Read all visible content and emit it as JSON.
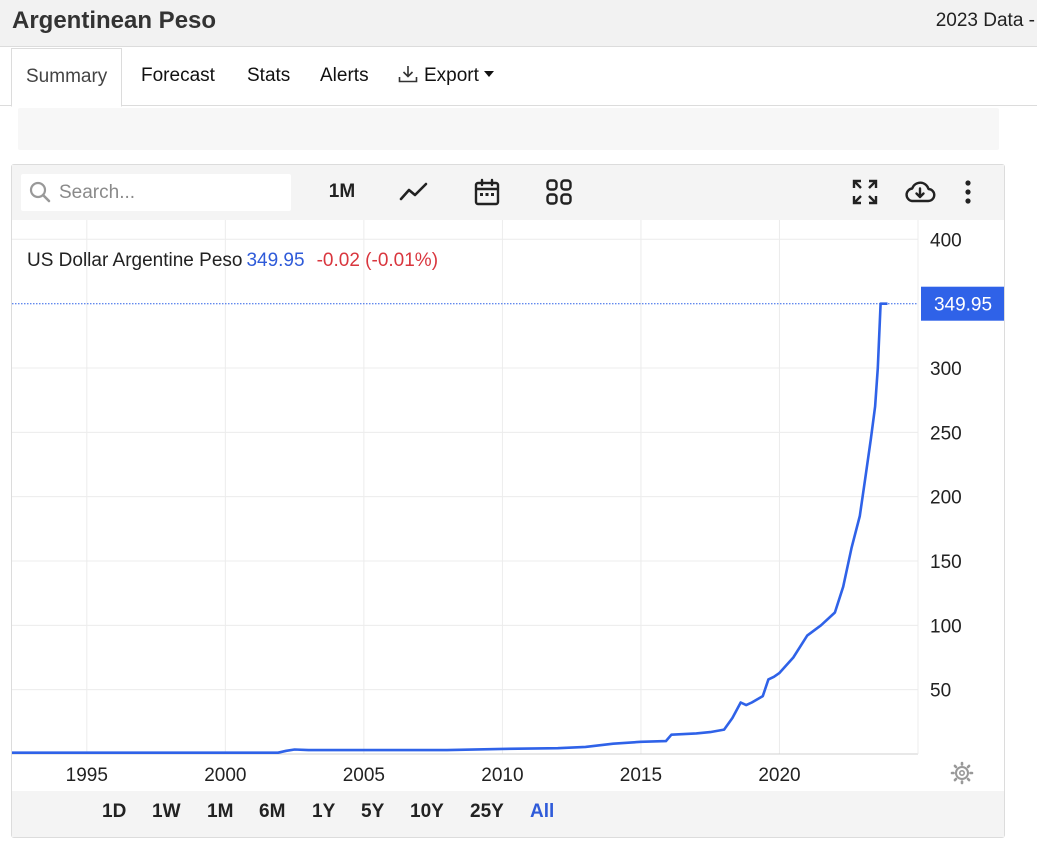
{
  "header": {
    "title": "Argentinean Peso",
    "subtitle": "2023 Data -"
  },
  "tabs": [
    {
      "label": "Summary",
      "active": true
    },
    {
      "label": "Forecast"
    },
    {
      "label": "Stats"
    },
    {
      "label": "Alerts"
    },
    {
      "label": "Export",
      "icon": "download-icon",
      "has_dropdown": true
    }
  ],
  "toolbar": {
    "search_placeholder": "Search...",
    "period_label": "1M",
    "icons": [
      "search-icon",
      "line-chart-icon",
      "calendar-icon",
      "grid-icon",
      "fullscreen-icon",
      "cloud-download-icon",
      "more-vertical-icon"
    ]
  },
  "legend": {
    "name": "US Dollar Argentine Peso",
    "value": "349.95",
    "change": "-0.02 (-0.01%)"
  },
  "range_buttons": [
    {
      "label": "1D"
    },
    {
      "label": "1W"
    },
    {
      "label": "1M"
    },
    {
      "label": "6M"
    },
    {
      "label": "1Y"
    },
    {
      "label": "5Y"
    },
    {
      "label": "10Y"
    },
    {
      "label": "25Y"
    },
    {
      "label": "All",
      "active": true
    }
  ],
  "colors": {
    "line": "#2f62e8",
    "accent": "#2f5bd9",
    "negative": "#d9363e",
    "badge": "#2f62e8"
  },
  "chart_data": {
    "type": "line",
    "title": "",
    "xlabel": "",
    "ylabel": "",
    "xlim": [
      1992.3,
      2025.0
    ],
    "ylim": [
      0,
      415
    ],
    "x_ticks": [
      1995,
      2000,
      2005,
      2010,
      2015,
      2020
    ],
    "x_tick_labels": [
      "1995",
      "2000",
      "2005",
      "2010",
      "2015",
      "2020"
    ],
    "y_ticks": [
      50,
      100,
      150,
      200,
      250,
      300,
      400
    ],
    "y_tick_labels": [
      "50",
      "100",
      "150",
      "200",
      "250",
      "300",
      "400"
    ],
    "grid": true,
    "y_axis_side": "right",
    "last_value_label": "349.95",
    "series": [
      {
        "name": "US Dollar Argentine Peso",
        "x": [
          1992.3,
          1995,
          2000,
          2001.9,
          2002.2,
          2002.5,
          2003.0,
          2005.0,
          2008.0,
          2010.0,
          2012.0,
          2013.0,
          2014.0,
          2015.0,
          2015.9,
          2016.1,
          2017.0,
          2017.5,
          2018.0,
          2018.3,
          2018.6,
          2018.8,
          2019.0,
          2019.4,
          2019.6,
          2019.8,
          2020.0,
          2020.5,
          2021.0,
          2021.5,
          2022.0,
          2022.3,
          2022.6,
          2022.9,
          2023.1,
          2023.3,
          2023.45,
          2023.55,
          2023.65,
          2023.9
        ],
        "y": [
          1,
          1,
          1,
          1,
          2.5,
          3.5,
          3,
          3,
          3,
          4,
          4.5,
          5.5,
          8,
          9.5,
          10,
          15,
          16,
          17,
          19,
          28,
          40,
          38,
          40,
          45,
          58,
          60,
          63,
          75,
          92,
          100,
          110,
          130,
          160,
          185,
          215,
          245,
          270,
          300,
          349.95,
          349.95
        ]
      }
    ]
  }
}
